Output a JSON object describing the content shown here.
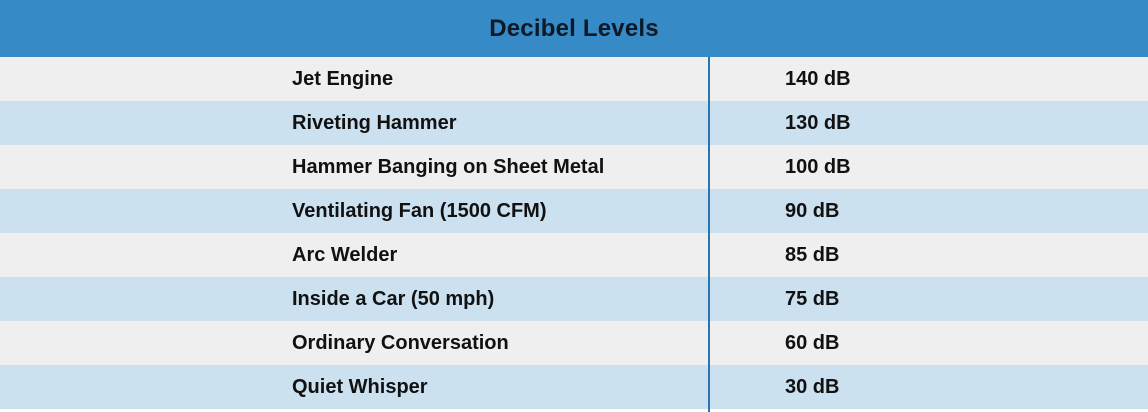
{
  "chart_data": {
    "type": "table",
    "title": "Decibel Levels",
    "rows": [
      {
        "source": "Jet Engine",
        "level": "140 dB"
      },
      {
        "source": "Riveting Hammer",
        "level": "130 dB"
      },
      {
        "source": "Hammer Banging on Sheet Metal",
        "level": "100 dB"
      },
      {
        "source": "Ventilating Fan (1500 CFM)",
        "level": "90 dB"
      },
      {
        "source": "Arc Welder",
        "level": "85 dB"
      },
      {
        "source": "Inside a Car (50 mph)",
        "level": "75 dB"
      },
      {
        "source": "Ordinary Conversation",
        "level": "60 dB"
      },
      {
        "source": "Quiet Whisper",
        "level": "30 dB"
      }
    ]
  },
  "colors": {
    "header": "#368ac6",
    "row_odd": "#efefef",
    "row_even": "#cbe1f0",
    "divider": "#2d74b3"
  }
}
